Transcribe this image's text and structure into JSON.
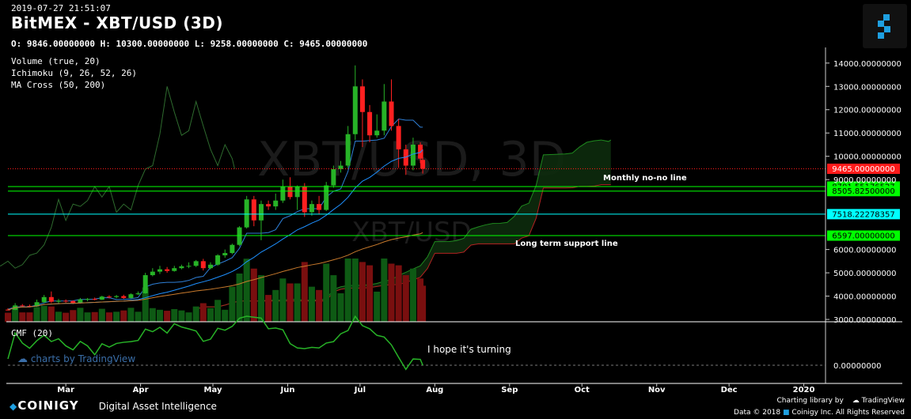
{
  "header": {
    "timestamp": "2019-07-27 21:51:07",
    "title": "BitMEX - XBT/USD (3D)",
    "ohlc": "O: 9846.00000000 H: 10300.00000000 L: 9258.00000000 C: 9465.00000000"
  },
  "indicators": [
    "Volume (true, 20)",
    "Ichimoku (9, 26, 52, 26)",
    "MA Cross (50, 200)"
  ],
  "cmf_label": "CMF (20)",
  "watermark": {
    "main": "XBT/USD, 3D",
    "sub": "XBT/USD"
  },
  "annotations": {
    "monthly": "Monthly no-no line",
    "support": "Long term support line",
    "cmf": "I hope it's turning"
  },
  "tv_watermark": "charts by TradingView",
  "footer": {
    "brand": "COINIGY",
    "tagline": "Digital Asset Intelligence",
    "charting": "Charting library by",
    "tradingview": "TradingView",
    "copyright": "Data © 2018",
    "rights": "Coinigy Inc. All Rights Reserved"
  },
  "chart_data": {
    "type": "candlestick",
    "price_axis": {
      "ticks": [
        "14000.00000000",
        "13000.00000000",
        "12000.00000000",
        "11000.00000000",
        "10000.00000000",
        "9000.00000000",
        "6000.00000000",
        "5000.00000000",
        "4000.00000000",
        "3000.00000000"
      ],
      "range": [
        2900,
        14400
      ]
    },
    "time_axis": {
      "ticks": [
        "Mar",
        "Apr",
        "May",
        "Jun",
        "Jul",
        "Aug",
        "Sep",
        "Oct",
        "Nov",
        "Dec",
        "2020"
      ],
      "range": [
        "2019-02-05",
        "2020-01-10"
      ]
    },
    "price_lines": [
      {
        "label": "9465.00000000",
        "value": 9465,
        "color": "#ff1a1a",
        "style": "dotted"
      },
      {
        "label": "8701.55176527",
        "value": 8701.55,
        "color": "#00ff00",
        "style": "solid"
      },
      {
        "label": "8505.82500000",
        "value": 8505.83,
        "color": "#00ff00",
        "style": "solid"
      },
      {
        "label": "7518.22278357",
        "value": 7518.22,
        "color": "#00ffff",
        "style": "solid"
      },
      {
        "label": "6597.00000000",
        "value": 6597,
        "color": "#00ff00",
        "style": "solid"
      }
    ],
    "candles": [
      {
        "d": "2019-02-05",
        "o": 3420,
        "h": 3480,
        "l": 3380,
        "c": 3410
      },
      {
        "d": "2019-02-08",
        "o": 3410,
        "h": 3700,
        "l": 3400,
        "c": 3600
      },
      {
        "d": "2019-02-11",
        "o": 3600,
        "h": 3660,
        "l": 3540,
        "c": 3580
      },
      {
        "d": "2019-02-14",
        "o": 3580,
        "h": 3640,
        "l": 3520,
        "c": 3560
      },
      {
        "d": "2019-02-17",
        "o": 3560,
        "h": 3850,
        "l": 3540,
        "c": 3740
      },
      {
        "d": "2019-02-20",
        "o": 3740,
        "h": 4050,
        "l": 3700,
        "c": 3960
      },
      {
        "d": "2019-02-23",
        "o": 3960,
        "h": 4200,
        "l": 3700,
        "c": 3760
      },
      {
        "d": "2019-02-26",
        "o": 3760,
        "h": 3880,
        "l": 3660,
        "c": 3800
      },
      {
        "d": "2019-03-01",
        "o": 3800,
        "h": 3860,
        "l": 3720,
        "c": 3790
      },
      {
        "d": "2019-03-04",
        "o": 3790,
        "h": 3820,
        "l": 3660,
        "c": 3700
      },
      {
        "d": "2019-03-07",
        "o": 3700,
        "h": 3920,
        "l": 3680,
        "c": 3860
      },
      {
        "d": "2019-03-10",
        "o": 3860,
        "h": 3920,
        "l": 3780,
        "c": 3880
      },
      {
        "d": "2019-03-13",
        "o": 3880,
        "h": 3940,
        "l": 3820,
        "c": 3850
      },
      {
        "d": "2019-03-16",
        "o": 3850,
        "h": 4020,
        "l": 3830,
        "c": 3980
      },
      {
        "d": "2019-03-19",
        "o": 3980,
        "h": 4040,
        "l": 3900,
        "c": 3960
      },
      {
        "d": "2019-03-22",
        "o": 3960,
        "h": 4050,
        "l": 3910,
        "c": 4000
      },
      {
        "d": "2019-03-25",
        "o": 4000,
        "h": 4060,
        "l": 3880,
        "c": 3920
      },
      {
        "d": "2019-03-28",
        "o": 3920,
        "h": 4120,
        "l": 3900,
        "c": 4080
      },
      {
        "d": "2019-03-31",
        "o": 4080,
        "h": 4200,
        "l": 4050,
        "c": 4120
      },
      {
        "d": "2019-04-03",
        "o": 4120,
        "h": 5000,
        "l": 4100,
        "c": 4900
      },
      {
        "d": "2019-04-06",
        "o": 4900,
        "h": 5200,
        "l": 4850,
        "c": 5050
      },
      {
        "d": "2019-04-09",
        "o": 5050,
        "h": 5300,
        "l": 4950,
        "c": 5150
      },
      {
        "d": "2019-04-12",
        "o": 5150,
        "h": 5250,
        "l": 5000,
        "c": 5080
      },
      {
        "d": "2019-04-15",
        "o": 5080,
        "h": 5300,
        "l": 5050,
        "c": 5200
      },
      {
        "d": "2019-04-18",
        "o": 5200,
        "h": 5350,
        "l": 5150,
        "c": 5280
      },
      {
        "d": "2019-04-21",
        "o": 5280,
        "h": 5450,
        "l": 5200,
        "c": 5300
      },
      {
        "d": "2019-04-24",
        "o": 5300,
        "h": 5550,
        "l": 5250,
        "c": 5500
      },
      {
        "d": "2019-04-27",
        "o": 5500,
        "h": 5600,
        "l": 5100,
        "c": 5200
      },
      {
        "d": "2019-04-30",
        "o": 5200,
        "h": 5450,
        "l": 5150,
        "c": 5350
      },
      {
        "d": "2019-05-03",
        "o": 5350,
        "h": 5800,
        "l": 5300,
        "c": 5750
      },
      {
        "d": "2019-05-06",
        "o": 5750,
        "h": 6000,
        "l": 5650,
        "c": 5850
      },
      {
        "d": "2019-05-09",
        "o": 5850,
        "h": 6250,
        "l": 5800,
        "c": 6200
      },
      {
        "d": "2019-05-12",
        "o": 6200,
        "h": 7000,
        "l": 6150,
        "c": 6950
      },
      {
        "d": "2019-05-15",
        "o": 6950,
        "h": 8300,
        "l": 6900,
        "c": 8150
      },
      {
        "d": "2019-05-18",
        "o": 8150,
        "h": 8300,
        "l": 7000,
        "c": 7250
      },
      {
        "d": "2019-05-21",
        "o": 7250,
        "h": 8100,
        "l": 6400,
        "c": 7950
      },
      {
        "d": "2019-05-24",
        "o": 7950,
        "h": 8100,
        "l": 7700,
        "c": 7850
      },
      {
        "d": "2019-05-27",
        "o": 7850,
        "h": 8400,
        "l": 7700,
        "c": 8100
      },
      {
        "d": "2019-05-30",
        "o": 8100,
        "h": 9000,
        "l": 8000,
        "c": 8700
      },
      {
        "d": "2019-06-02",
        "o": 8700,
        "h": 9100,
        "l": 8150,
        "c": 8250
      },
      {
        "d": "2019-06-05",
        "o": 8250,
        "h": 8750,
        "l": 7700,
        "c": 8700
      },
      {
        "d": "2019-06-08",
        "o": 8700,
        "h": 8850,
        "l": 7400,
        "c": 7600
      },
      {
        "d": "2019-06-11",
        "o": 7600,
        "h": 8100,
        "l": 7450,
        "c": 7950
      },
      {
        "d": "2019-06-14",
        "o": 7950,
        "h": 8300,
        "l": 7500,
        "c": 7700
      },
      {
        "d": "2019-06-17",
        "o": 7700,
        "h": 8900,
        "l": 7650,
        "c": 8750
      },
      {
        "d": "2019-06-20",
        "o": 8750,
        "h": 9600,
        "l": 8650,
        "c": 9450
      },
      {
        "d": "2019-06-23",
        "o": 9450,
        "h": 9800,
        "l": 9300,
        "c": 9600
      },
      {
        "d": "2019-06-26",
        "o": 9600,
        "h": 11300,
        "l": 9500,
        "c": 10950
      },
      {
        "d": "2019-06-29",
        "o": 10950,
        "h": 13900,
        "l": 10700,
        "c": 13000
      },
      {
        "d": "2019-07-02",
        "o": 13000,
        "h": 13300,
        "l": 10400,
        "c": 11900
      },
      {
        "d": "2019-07-05",
        "o": 11900,
        "h": 12200,
        "l": 10600,
        "c": 10900
      },
      {
        "d": "2019-07-08",
        "o": 10900,
        "h": 11800,
        "l": 10800,
        "c": 11100
      },
      {
        "d": "2019-07-11",
        "o": 11100,
        "h": 13100,
        "l": 10900,
        "c": 12350
      },
      {
        "d": "2019-07-14",
        "o": 12350,
        "h": 13300,
        "l": 11100,
        "c": 11300
      },
      {
        "d": "2019-07-17",
        "o": 11300,
        "h": 11600,
        "l": 9500,
        "c": 10300
      },
      {
        "d": "2019-07-20",
        "o": 10300,
        "h": 10500,
        "l": 9200,
        "c": 9600
      },
      {
        "d": "2019-07-23",
        "o": 9600,
        "h": 10800,
        "l": 9400,
        "c": 10500
      },
      {
        "d": "2019-07-26",
        "o": 10500,
        "h": 10600,
        "l": 9700,
        "c": 9900
      },
      {
        "d": "2019-07-27",
        "o": 9846,
        "h": 10300,
        "l": 9258,
        "c": 9465
      }
    ]
  }
}
